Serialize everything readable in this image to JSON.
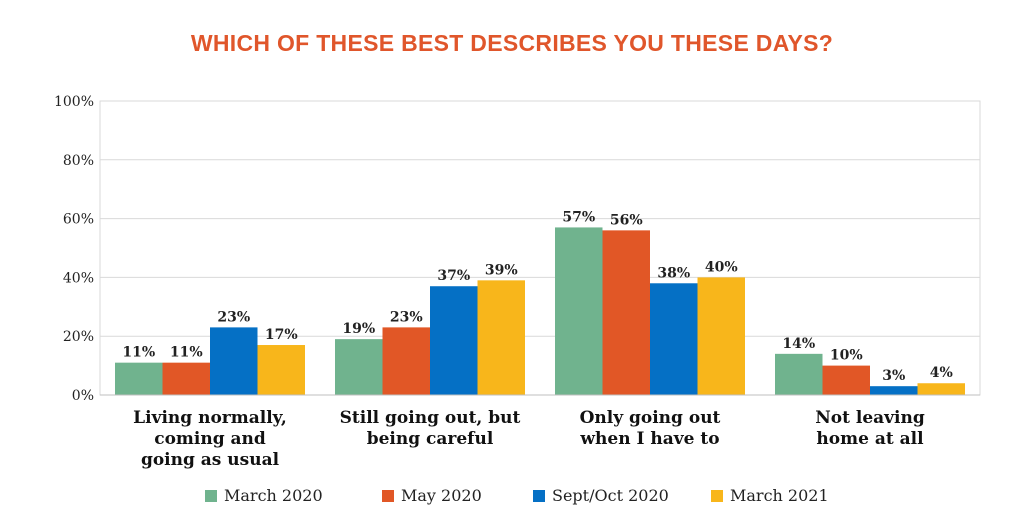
{
  "chart_data": {
    "type": "bar",
    "title": "WHICH OF THESE BEST DESCRIBES YOU THESE DAYS?",
    "categories": [
      [
        "Living normally,",
        "coming and",
        "going as usual"
      ],
      [
        "Still going out, but",
        "being careful"
      ],
      [
        "Only going out",
        "when I have to"
      ],
      [
        "Not leaving",
        "home at all"
      ]
    ],
    "series": [
      {
        "name": "March 2020",
        "color": "#70b38e",
        "values": [
          11,
          19,
          57,
          14
        ]
      },
      {
        "name": "May 2020",
        "color": "#e15726",
        "values": [
          11,
          23,
          56,
          10
        ]
      },
      {
        "name": "Sept/Oct 2020",
        "color": "#0570c5",
        "values": [
          23,
          37,
          38,
          3
        ]
      },
      {
        "name": "March 2021",
        "color": "#f8b61b",
        "values": [
          17,
          39,
          40,
          4
        ]
      }
    ],
    "ylim": [
      0,
      100
    ],
    "yticks": [
      0,
      20,
      40,
      60,
      80,
      100
    ],
    "value_suffix": "%",
    "grid": true,
    "legend_position": "bottom"
  }
}
